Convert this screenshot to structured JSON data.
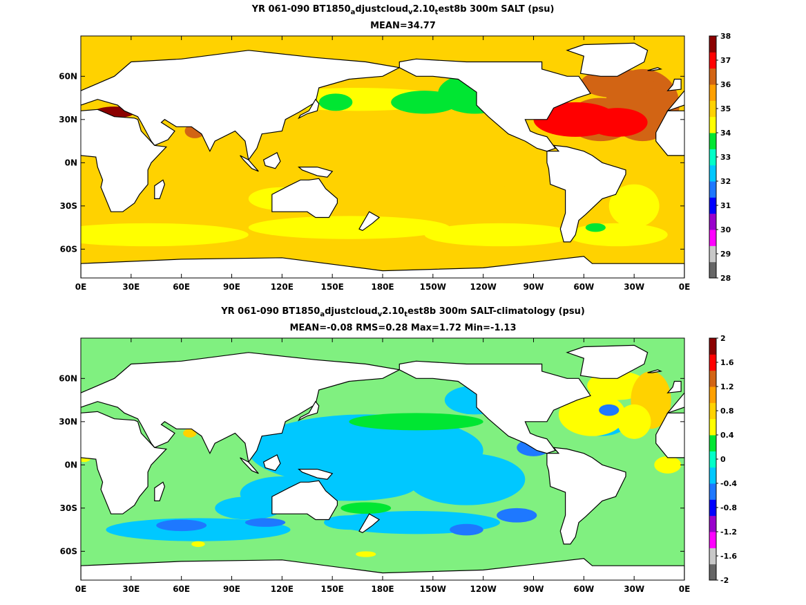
{
  "chart_data": [
    {
      "type": "heatmap",
      "title_parts": [
        "YR 061-090 BT1850",
        "a",
        "djustcloud",
        "v",
        "2.10",
        "t",
        "est8b 300m SALT (psu)"
      ],
      "subtitle": "MEAN=34.77",
      "x_ticks": [
        "0E",
        "30E",
        "60E",
        "90E",
        "120E",
        "150E",
        "180E",
        "150W",
        "120W",
        "90W",
        "60W",
        "30W",
        "0E"
      ],
      "y_ticks": [
        "60N",
        "30N",
        "0N",
        "30S",
        "60S"
      ],
      "y_tick_lat": [
        60,
        30,
        0,
        -30,
        -60
      ],
      "xlim": [
        0,
        360
      ],
      "ylim": [
        -80,
        88
      ],
      "colorbar": {
        "ticks": [
          "38",
          "37",
          "36",
          "35",
          "34",
          "33",
          "32",
          "31",
          "30",
          "29",
          "28"
        ],
        "range": [
          28,
          38
        ],
        "colors": [
          "#666666",
          "#c8c8c8",
          "#ff00ff",
          "#9900cc",
          "#0000ff",
          "#1e78ff",
          "#00c8ff",
          "#00ffc8",
          "#00e632",
          "#ffff00",
          "#ffd200",
          "#ffa000",
          "#d26414",
          "#ff0000",
          "#8b0000"
        ]
      },
      "background_color": "#ffd200"
    },
    {
      "type": "heatmap",
      "title_parts": [
        "YR 061-090 BT1850",
        "a",
        "djustcloud",
        "v",
        "2.10",
        "t",
        "est8b 300m SALT-climatology (psu)"
      ],
      "subtitle": "MEAN=-0.08   RMS=0.28   Max=1.72   Min=-1.13",
      "x_ticks": [
        "0E",
        "30E",
        "60E",
        "90E",
        "120E",
        "150E",
        "180E",
        "150W",
        "120W",
        "90W",
        "60W",
        "30W",
        "0E"
      ],
      "y_ticks": [
        "60N",
        "30N",
        "0N",
        "30S",
        "60S"
      ],
      "y_tick_lat": [
        60,
        30,
        0,
        -30,
        -60
      ],
      "xlim": [
        0,
        360
      ],
      "ylim": [
        -80,
        88
      ],
      "colorbar": {
        "ticks": [
          "2",
          "1.6",
          "1.2",
          "0.8",
          "0.4",
          "0",
          "-0.4",
          "-0.8",
          "-1.2",
          "-1.6",
          "-2"
        ],
        "range": [
          -2,
          2
        ],
        "colors": [
          "#666666",
          "#c8c8c8",
          "#ff00ff",
          "#9900cc",
          "#0000ff",
          "#1e78ff",
          "#00c8ff",
          "#00ffc8",
          "#00e632",
          "#ffff00",
          "#ffd200",
          "#ffa000",
          "#d26414",
          "#ff0000",
          "#8b0000"
        ]
      },
      "background_color": "#80f080"
    }
  ]
}
